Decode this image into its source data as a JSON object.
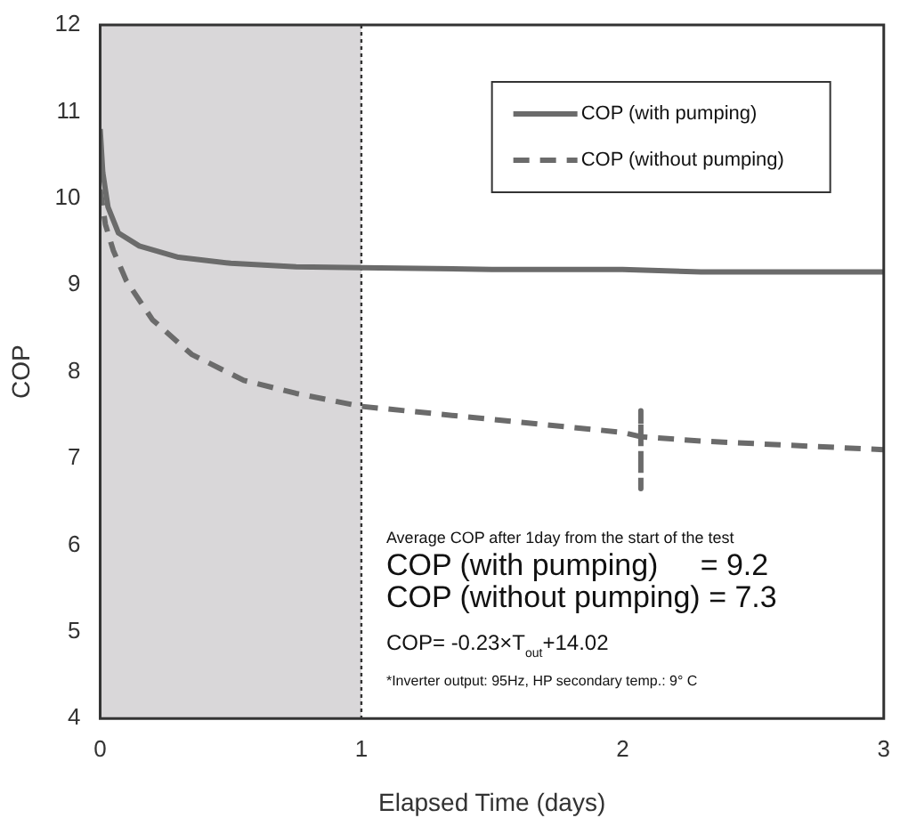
{
  "chart_data": {
    "type": "line",
    "xlabel": "Elapsed Time (days)",
    "ylabel": "COP",
    "xlim": [
      0,
      3
    ],
    "xticks": [
      0,
      1,
      2,
      3
    ],
    "ylim": [
      4,
      12
    ],
    "yticks": [
      4,
      5,
      6,
      7,
      8,
      9,
      10,
      11,
      12
    ],
    "grid": false,
    "legend": "top right",
    "marker": "none",
    "series": [
      {
        "name": "COP (with pumping)",
        "color": "#6b6b6b",
        "line_style": "solid",
        "x": [
          0,
          0.01,
          0.03,
          0.07,
          0.15,
          0.3,
          0.5,
          0.75,
          1,
          1.5,
          2,
          2.3,
          3
        ],
        "values": [
          10.8,
          10.3,
          9.9,
          9.6,
          9.45,
          9.32,
          9.25,
          9.21,
          9.2,
          9.18,
          9.18,
          9.15,
          9.15
        ]
      },
      {
        "name": "COP (without pumping)",
        "color": "#6b6b6b",
        "line_style": "dashed",
        "x": [
          0,
          0.02,
          0.05,
          0.1,
          0.2,
          0.35,
          0.55,
          0.75,
          1,
          1.5,
          2,
          2.07,
          2.07,
          2.07,
          2.07,
          2.3,
          3
        ],
        "values": [
          10.1,
          9.7,
          9.4,
          9.05,
          8.6,
          8.2,
          7.9,
          7.75,
          7.6,
          7.45,
          7.3,
          7.25,
          7.55,
          6.65,
          7.25,
          7.2,
          7.1
        ]
      }
    ],
    "bands": [
      {
        "axis": "x",
        "from": 0,
        "to": 1,
        "color": "#d9d7d9"
      }
    ],
    "ref_lines": [
      {
        "axis": "x",
        "value": 1,
        "color": "#333333",
        "line_style": "dotted"
      }
    ],
    "annotations": [
      "Average COP after 1day from the start of the test",
      "COP (with pumping)     = 9.2",
      "COP (without pumping) = 7.3",
      "COP= -0.23×T$_{out}$+14.02",
      "*Inverter output: 95Hz, HP secondary temp.: 9° C"
    ]
  }
}
